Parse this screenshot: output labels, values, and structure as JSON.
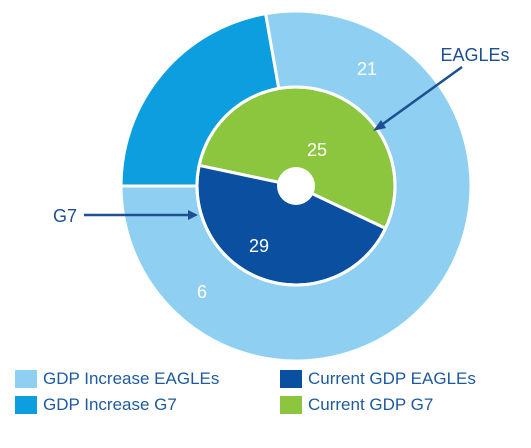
{
  "chart_data": {
    "type": "pie",
    "rings": [
      {
        "ring": "outer",
        "slices": [
          {
            "name": "GDP Increase EAGLEs",
            "label": "21",
            "value": 21,
            "color": "#8fd0f2"
          },
          {
            "name": "GDP Increase G7",
            "label": "6",
            "value": 6,
            "color": "#0d9ee0"
          }
        ]
      },
      {
        "ring": "inner",
        "slices": [
          {
            "name": "Current GDP EAGLEs",
            "label": "25",
            "value": 25,
            "color": "#0a4fa0"
          },
          {
            "name": "Current GDP G7",
            "label": "29",
            "value": 29,
            "color": "#8cc63f"
          }
        ]
      }
    ],
    "annotations": [
      "EAGLEs",
      "G7"
    ],
    "legend": [
      {
        "label": "GDP Increase EAGLEs",
        "color": "#8fd0f2"
      },
      {
        "label": "GDP Increase G7",
        "color": "#0d9ee0"
      },
      {
        "label": "Current GDP EAGLEs",
        "color": "#0a4fa0"
      },
      {
        "label": "Current GDP G7",
        "color": "#8cc63f"
      }
    ],
    "legend_position": "bottom"
  }
}
